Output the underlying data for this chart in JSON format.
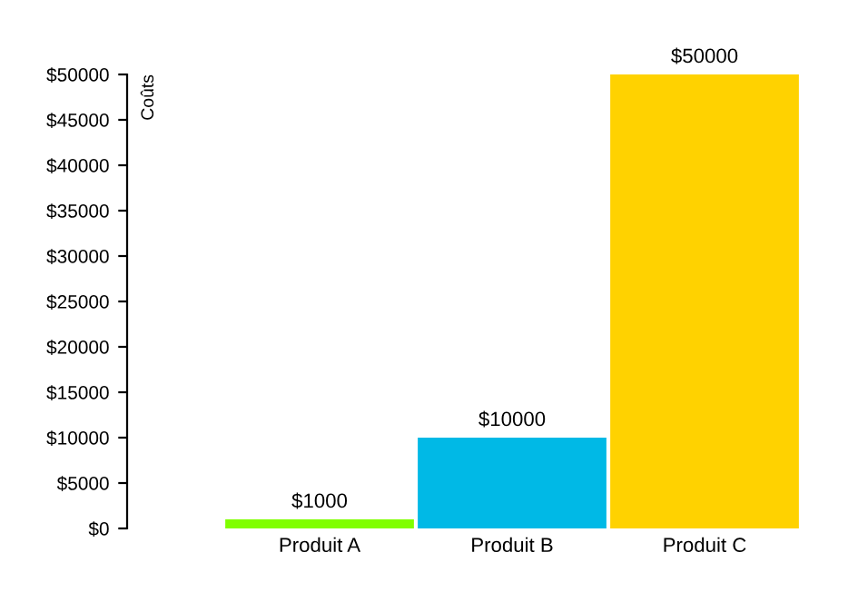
{
  "chart_data": {
    "type": "bar",
    "ylabel": "Coûts",
    "categories": [
      "Produit A",
      "Produit B",
      "Produit C"
    ],
    "values": [
      1000,
      10000,
      50000
    ],
    "colors": [
      "#80ff00",
      "#00b9e6",
      "#ffd200"
    ],
    "value_labels": [
      "$1000",
      "$10000",
      "$50000"
    ],
    "ylim": [
      0,
      50000
    ],
    "yticks": [
      {
        "value": 0,
        "label": "$0"
      },
      {
        "value": 5000,
        "label": "$5000"
      },
      {
        "value": 10000,
        "label": "$10000"
      },
      {
        "value": 15000,
        "label": "$15000"
      },
      {
        "value": 20000,
        "label": "$20000"
      },
      {
        "value": 25000,
        "label": "$25000"
      },
      {
        "value": 30000,
        "label": "$30000"
      },
      {
        "value": 35000,
        "label": "$35000"
      },
      {
        "value": 40000,
        "label": "$40000"
      },
      {
        "value": 45000,
        "label": "$45000"
      },
      {
        "value": 50000,
        "label": "$50000"
      }
    ],
    "grid": false,
    "legend": false
  }
}
